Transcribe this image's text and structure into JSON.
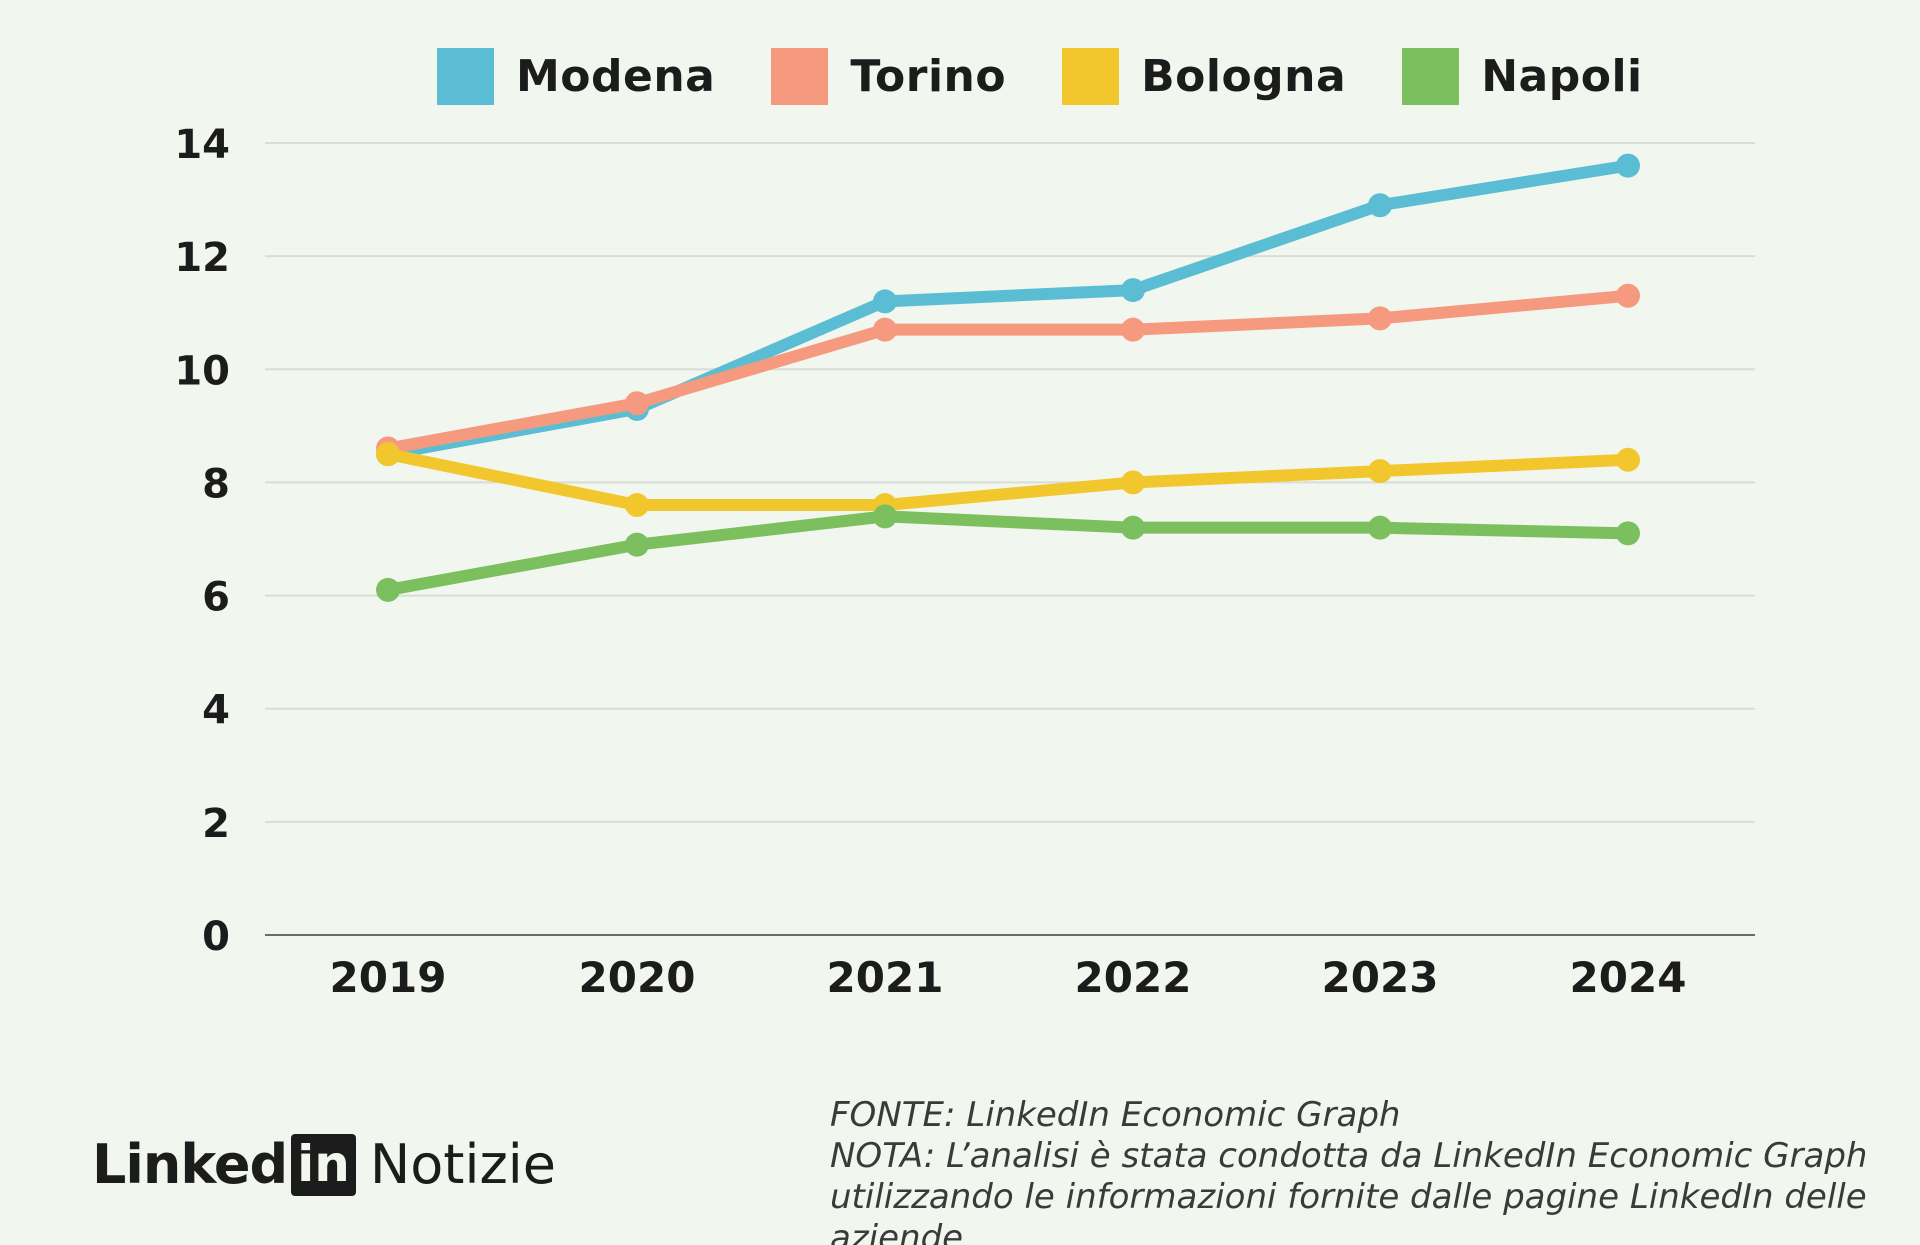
{
  "chart_data": {
    "type": "line",
    "title": "",
    "xlabel": "",
    "ylabel": "",
    "categories": [
      "2019",
      "2020",
      "2021",
      "2022",
      "2023",
      "2024"
    ],
    "ylim": [
      0,
      14
    ],
    "yticks": [
      "0",
      "2",
      "4",
      "6",
      "8",
      "10",
      "12",
      "14"
    ],
    "grid": true,
    "legend_position": "top",
    "series": [
      {
        "name": "Modena",
        "color": "#5bbdd3",
        "values": [
          8.5,
          9.3,
          11.2,
          11.4,
          12.9,
          13.6
        ]
      },
      {
        "name": "Torino",
        "color": "#f59a7f",
        "values": [
          8.6,
          9.4,
          10.7,
          10.7,
          10.9,
          11.3
        ]
      },
      {
        "name": "Bologna",
        "color": "#f2c72e",
        "values": [
          8.5,
          7.6,
          7.6,
          8.0,
          8.2,
          8.4
        ]
      },
      {
        "name": "Napoli",
        "color": "#7bbf5e",
        "values": [
          6.1,
          6.9,
          7.4,
          7.2,
          7.2,
          7.1
        ]
      }
    ]
  },
  "branding": {
    "linked": "Linked",
    "in": "in",
    "notizie": "Notizie"
  },
  "notes": {
    "source": "FONTE: LinkedIn Economic Graph",
    "note_line1": "NOTA: L’analisi è stata condotta da LinkedIn Economic Graph",
    "note_line2": "utilizzando le informazioni fornite dalle pagine LinkedIn delle",
    "note_line3": "aziende"
  }
}
